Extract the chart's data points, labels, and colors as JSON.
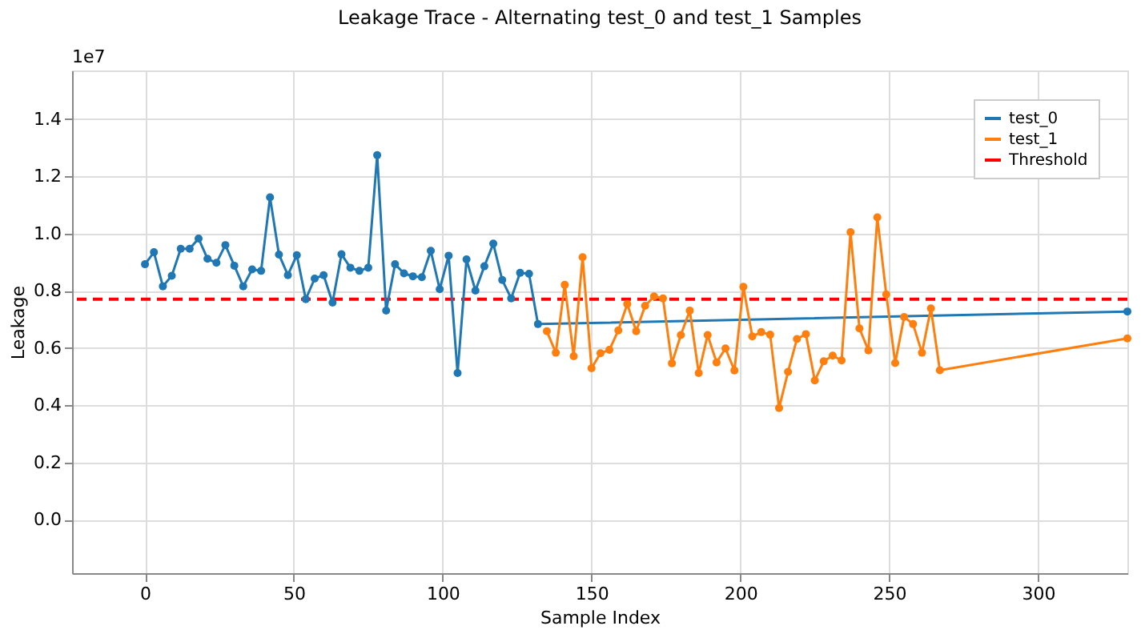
{
  "chart_data": {
    "type": "line",
    "title": "Leakage Trace - Alternating test_0 and test_1 Samples",
    "xlabel": "Sample Index",
    "ylabel": "Leakage",
    "annotations": [
      "1e7"
    ],
    "xlim": [
      -24.5,
      330
    ],
    "xticks": [
      0,
      50,
      100,
      150,
      200,
      250,
      300
    ],
    "ylim": [
      -0.186,
      1.57
    ],
    "yticks": [
      {
        "value": 0,
        "label": "0.0"
      },
      0.2,
      0.4,
      0.6,
      0.8,
      {
        "value": 1,
        "label": "1.0"
      },
      1.2,
      1.4
    ],
    "grid": true,
    "legend": "top right",
    "marker": "circle",
    "line_style": "solid",
    "series": [
      {
        "name": "test_0",
        "color": "#1f77b4",
        "x": [
          0,
          3,
          6,
          9,
          12,
          15,
          18,
          21,
          24,
          27,
          30,
          33,
          36,
          39,
          42,
          45,
          48,
          51,
          54,
          57,
          60,
          63,
          66,
          69,
          72,
          75,
          78,
          81,
          84,
          87,
          90,
          93,
          96,
          99,
          102,
          105,
          108,
          111,
          114,
          117,
          120,
          123,
          126,
          129,
          132,
          330
        ],
        "values": [
          0.893,
          0.935,
          0.816,
          0.853,
          0.947,
          0.947,
          0.983,
          0.912,
          0.898,
          0.96,
          0.888,
          0.816,
          0.875,
          0.87,
          1.127,
          0.927,
          0.855,
          0.925,
          0.771,
          0.843,
          0.855,
          0.759,
          0.928,
          0.881,
          0.87,
          0.881,
          1.274,
          0.731,
          0.893,
          0.861,
          0.851,
          0.848,
          0.94,
          0.806,
          0.923,
          0.513,
          0.91,
          0.801,
          0.886,
          0.965,
          0.838,
          0.774,
          0.863,
          0.86,
          0.684,
          0.728
        ]
      },
      {
        "name": "test_1",
        "color": "#ff7f0e",
        "x": [
          135,
          138,
          141,
          144,
          147,
          150,
          153,
          156,
          159,
          162,
          165,
          168,
          171,
          174,
          177,
          180,
          183,
          186,
          189,
          192,
          195,
          198,
          201,
          204,
          207,
          210,
          213,
          216,
          219,
          222,
          225,
          228,
          231,
          234,
          237,
          240,
          243,
          246,
          249,
          252,
          255,
          258,
          261,
          264,
          267,
          330
        ],
        "values": [
          0.659,
          0.584,
          0.821,
          0.572,
          0.918,
          0.53,
          0.582,
          0.594,
          0.662,
          0.754,
          0.659,
          0.748,
          0.781,
          0.774,
          0.547,
          0.646,
          0.731,
          0.513,
          0.646,
          0.55,
          0.599,
          0.522,
          0.814,
          0.641,
          0.656,
          0.647,
          0.391,
          0.517,
          0.632,
          0.649,
          0.487,
          0.554,
          0.574,
          0.557,
          1.005,
          0.669,
          0.592,
          1.057,
          0.788,
          0.548,
          0.709,
          0.684,
          0.584,
          0.739,
          0.523,
          0.634
        ]
      }
    ],
    "ref_lines": [
      {
        "axis": "y",
        "value": 0.771,
        "label": "Threshold",
        "color": "#ff0000",
        "line_style": "dashed"
      }
    ]
  }
}
